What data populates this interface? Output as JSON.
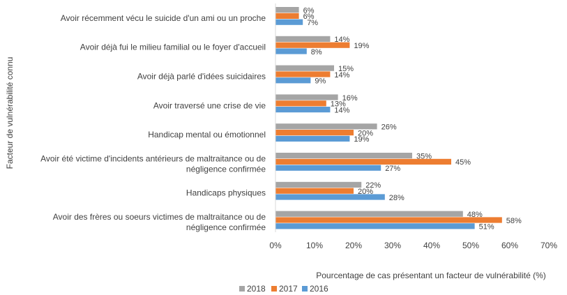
{
  "chart_data": {
    "type": "bar",
    "orientation": "horizontal",
    "categories": [
      [
        "Avoir récemment vécu le suicide d'un ami ou un proche"
      ],
      [
        "Avoir déjà fui le milieu familial ou le foyer d'accueil"
      ],
      [
        "Avoir déjà parlé d'idées suicidaires"
      ],
      [
        "Avoir traversé une crise de vie"
      ],
      [
        "Handicap  mental ou émotionnel"
      ],
      [
        "Avoir été victime d'incidents antérieurs de maltraitance ou de",
        "négligence confirmée"
      ],
      [
        "Handicaps physiques"
      ],
      [
        "Avoir des frères ou soeurs victimes de maltraitance ou de",
        "négligence confirmée"
      ]
    ],
    "series": [
      {
        "name": "2018",
        "color": "#A5A5A5",
        "values": [
          6,
          14,
          15,
          16,
          26,
          35,
          22,
          48
        ],
        "labels": [
          "6%",
          "14%",
          "15%",
          "16%",
          "26%",
          "35%",
          "22%",
          "48%"
        ]
      },
      {
        "name": "2017",
        "color": "#ED7D31",
        "values": [
          6,
          19,
          14,
          13,
          20,
          45,
          20,
          58
        ],
        "labels": [
          "6%",
          "19%",
          "14%",
          "13%",
          "20%",
          "45%",
          "20%",
          "58%"
        ]
      },
      {
        "name": "2016",
        "color": "#5B9BD5",
        "values": [
          7,
          8,
          9,
          14,
          19,
          27,
          28,
          51
        ],
        "labels": [
          "7%",
          "8%",
          "9%",
          "14%",
          "19%",
          "27%",
          "28%",
          "51%"
        ]
      }
    ],
    "xlim": [
      0,
      70
    ],
    "xticks": [
      "0%",
      "10%",
      "20%",
      "30%",
      "40%",
      "50%",
      "60%",
      "70%"
    ],
    "xlabel": "Pourcentage de cas présentant un facteur de vulnérabilité (%)",
    "ylabel": "Facteur de vulnérabilité connu",
    "legend": [
      "2018",
      "2017",
      "2016"
    ],
    "legend_position": "bottom-left",
    "grid": false
  }
}
